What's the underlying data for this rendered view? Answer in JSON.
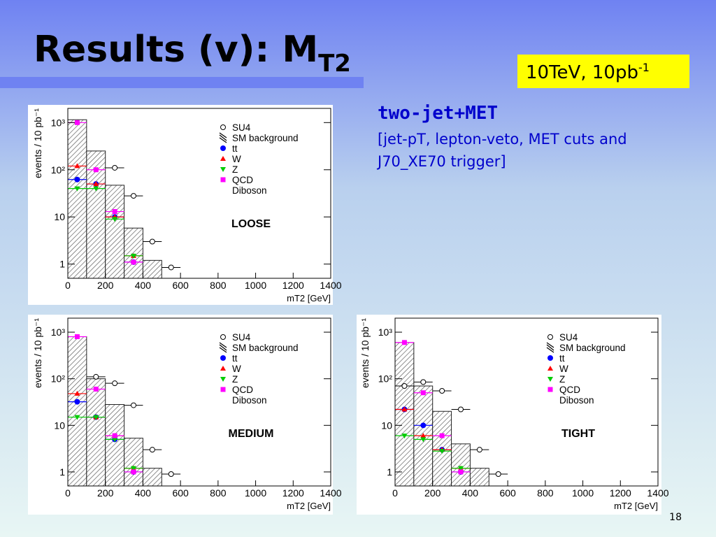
{
  "title": "Results (v): M",
  "title_subscript": "T2",
  "badge": {
    "text": "10TeV, 10pb",
    "superscript": "-1"
  },
  "heading": "two-jet+MET",
  "note_lines": [
    "[jet-pT, lepton-veto, MET cuts and",
    "J70_XE70 trigger]"
  ],
  "page_number": 18,
  "chart_data": [
    {
      "type": "histogram",
      "annotation": "LOOSE",
      "x_label": "mT2 [GeV]",
      "y_label": "events / 10 pb⁻¹",
      "log_y": true,
      "legend": "upper right",
      "bins": [
        0,
        100,
        200,
        300,
        400,
        500,
        600
      ],
      "x": [
        50,
        150,
        250,
        350,
        450,
        550
      ],
      "xlim": [
        0,
        1400
      ],
      "xticks": [
        0,
        200,
        400,
        600,
        800,
        1000,
        1200,
        1400
      ],
      "ylim": [
        0.5,
        2000
      ],
      "yticks": [
        1,
        10,
        {
          "value": 100,
          "label": "10²"
        },
        {
          "value": 1000,
          "label": "10³"
        }
      ],
      "series": [
        {
          "name": "SU4",
          "marker": "circle-open",
          "color": "#000000",
          "values": [
            null,
            null,
            110,
            28,
            3,
            0.85
          ]
        },
        {
          "name": "SM background",
          "marker": "hatch",
          "color": "#000000",
          "values": [
            1150,
            250,
            47,
            5.8,
            1.2,
            null
          ]
        },
        {
          "name": "tt",
          "marker": "circle",
          "color": "#0000ff",
          "values": [
            62,
            50,
            10,
            1.1,
            null,
            null
          ]
        },
        {
          "name": "W",
          "marker": "triangle-up",
          "color": "#ff0000",
          "values": [
            120,
            50,
            10,
            1.5,
            null,
            null
          ]
        },
        {
          "name": "Z",
          "marker": "triangle-down",
          "color": "#00cc00",
          "values": [
            40,
            40,
            9,
            1.5,
            null,
            null
          ]
        },
        {
          "name": "QCD",
          "marker": "square",
          "color": "#ff00ff",
          "values": [
            1000,
            100,
            13,
            1.1,
            null,
            null
          ]
        },
        {
          "name": "Diboson",
          "marker": "star",
          "color": "#999999",
          "values": [
            null,
            null,
            null,
            null,
            null,
            null
          ]
        }
      ]
    },
    {
      "type": "histogram",
      "annotation": "MEDIUM",
      "x_label": "mT2 [GeV]",
      "y_label": "events / 10 pb⁻¹",
      "log_y": true,
      "legend": "upper right",
      "bins": [
        0,
        100,
        200,
        300,
        400,
        500,
        600
      ],
      "x": [
        50,
        150,
        250,
        350,
        450,
        550
      ],
      "xlim": [
        0,
        1400
      ],
      "xticks": [
        0,
        200,
        400,
        600,
        800,
        1000,
        1200,
        1400
      ],
      "ylim": [
        0.5,
        2000
      ],
      "yticks": [
        1,
        10,
        {
          "value": 100,
          "label": "10²"
        },
        {
          "value": 1000,
          "label": "10³"
        }
      ],
      "series": [
        {
          "name": "SU4",
          "marker": "circle-open",
          "color": "#000000",
          "values": [
            null,
            110,
            80,
            27,
            3,
            0.9
          ]
        },
        {
          "name": "SM background",
          "marker": "hatch",
          "color": "#000000",
          "values": [
            800,
            100,
            28,
            5.3,
            1.2,
            null
          ]
        },
        {
          "name": "tt",
          "marker": "circle",
          "color": "#0000ff",
          "values": [
            32,
            15,
            5,
            1,
            null,
            null
          ]
        },
        {
          "name": "W",
          "marker": "triangle-up",
          "color": "#ff0000",
          "values": [
            48,
            15,
            6,
            1.2,
            null,
            null
          ]
        },
        {
          "name": "Z",
          "marker": "triangle-down",
          "color": "#00cc00",
          "values": [
            15,
            15,
            5,
            1.2,
            null,
            null
          ]
        },
        {
          "name": "QCD",
          "marker": "square",
          "color": "#ff00ff",
          "values": [
            800,
            60,
            6,
            1,
            null,
            null
          ]
        },
        {
          "name": "Diboson",
          "marker": "star",
          "color": "#999999",
          "values": [
            null,
            null,
            null,
            null,
            null,
            null
          ]
        }
      ]
    },
    {
      "type": "histogram",
      "annotation": "TIGHT",
      "x_label": "mT2 [GeV]",
      "y_label": "events / 10 pb⁻¹",
      "log_y": true,
      "legend": "upper right",
      "bins": [
        0,
        100,
        200,
        300,
        400,
        500,
        600
      ],
      "x": [
        50,
        150,
        250,
        350,
        450,
        550
      ],
      "xlim": [
        0,
        1400
      ],
      "xticks": [
        0,
        200,
        400,
        600,
        800,
        1000,
        1200,
        1400
      ],
      "ylim": [
        0.5,
        2000
      ],
      "yticks": [
        1,
        10,
        {
          "value": 100,
          "label": "10²"
        },
        {
          "value": 1000,
          "label": "10³"
        }
      ],
      "series": [
        {
          "name": "SU4",
          "marker": "circle-open",
          "color": "#000000",
          "values": [
            70,
            85,
            55,
            22,
            3,
            0.9
          ]
        },
        {
          "name": "SM background",
          "marker": "hatch",
          "color": "#000000",
          "values": [
            600,
            70,
            20,
            4,
            1.2,
            null
          ]
        },
        {
          "name": "tt",
          "marker": "circle",
          "color": "#0000ff",
          "values": [
            22,
            10,
            3,
            1,
            null,
            null
          ]
        },
        {
          "name": "W",
          "marker": "triangle-up",
          "color": "#ff0000",
          "values": [
            22,
            6,
            3,
            1.2,
            null,
            null
          ]
        },
        {
          "name": "Z",
          "marker": "triangle-down",
          "color": "#00cc00",
          "values": [
            6,
            5,
            2.8,
            1.2,
            null,
            null
          ]
        },
        {
          "name": "QCD",
          "marker": "square",
          "color": "#ff00ff",
          "values": [
            600,
            50,
            6,
            1,
            null,
            null
          ]
        },
        {
          "name": "Diboson",
          "marker": "star",
          "color": "#999999",
          "values": [
            null,
            null,
            null,
            null,
            null,
            null
          ]
        }
      ]
    }
  ]
}
